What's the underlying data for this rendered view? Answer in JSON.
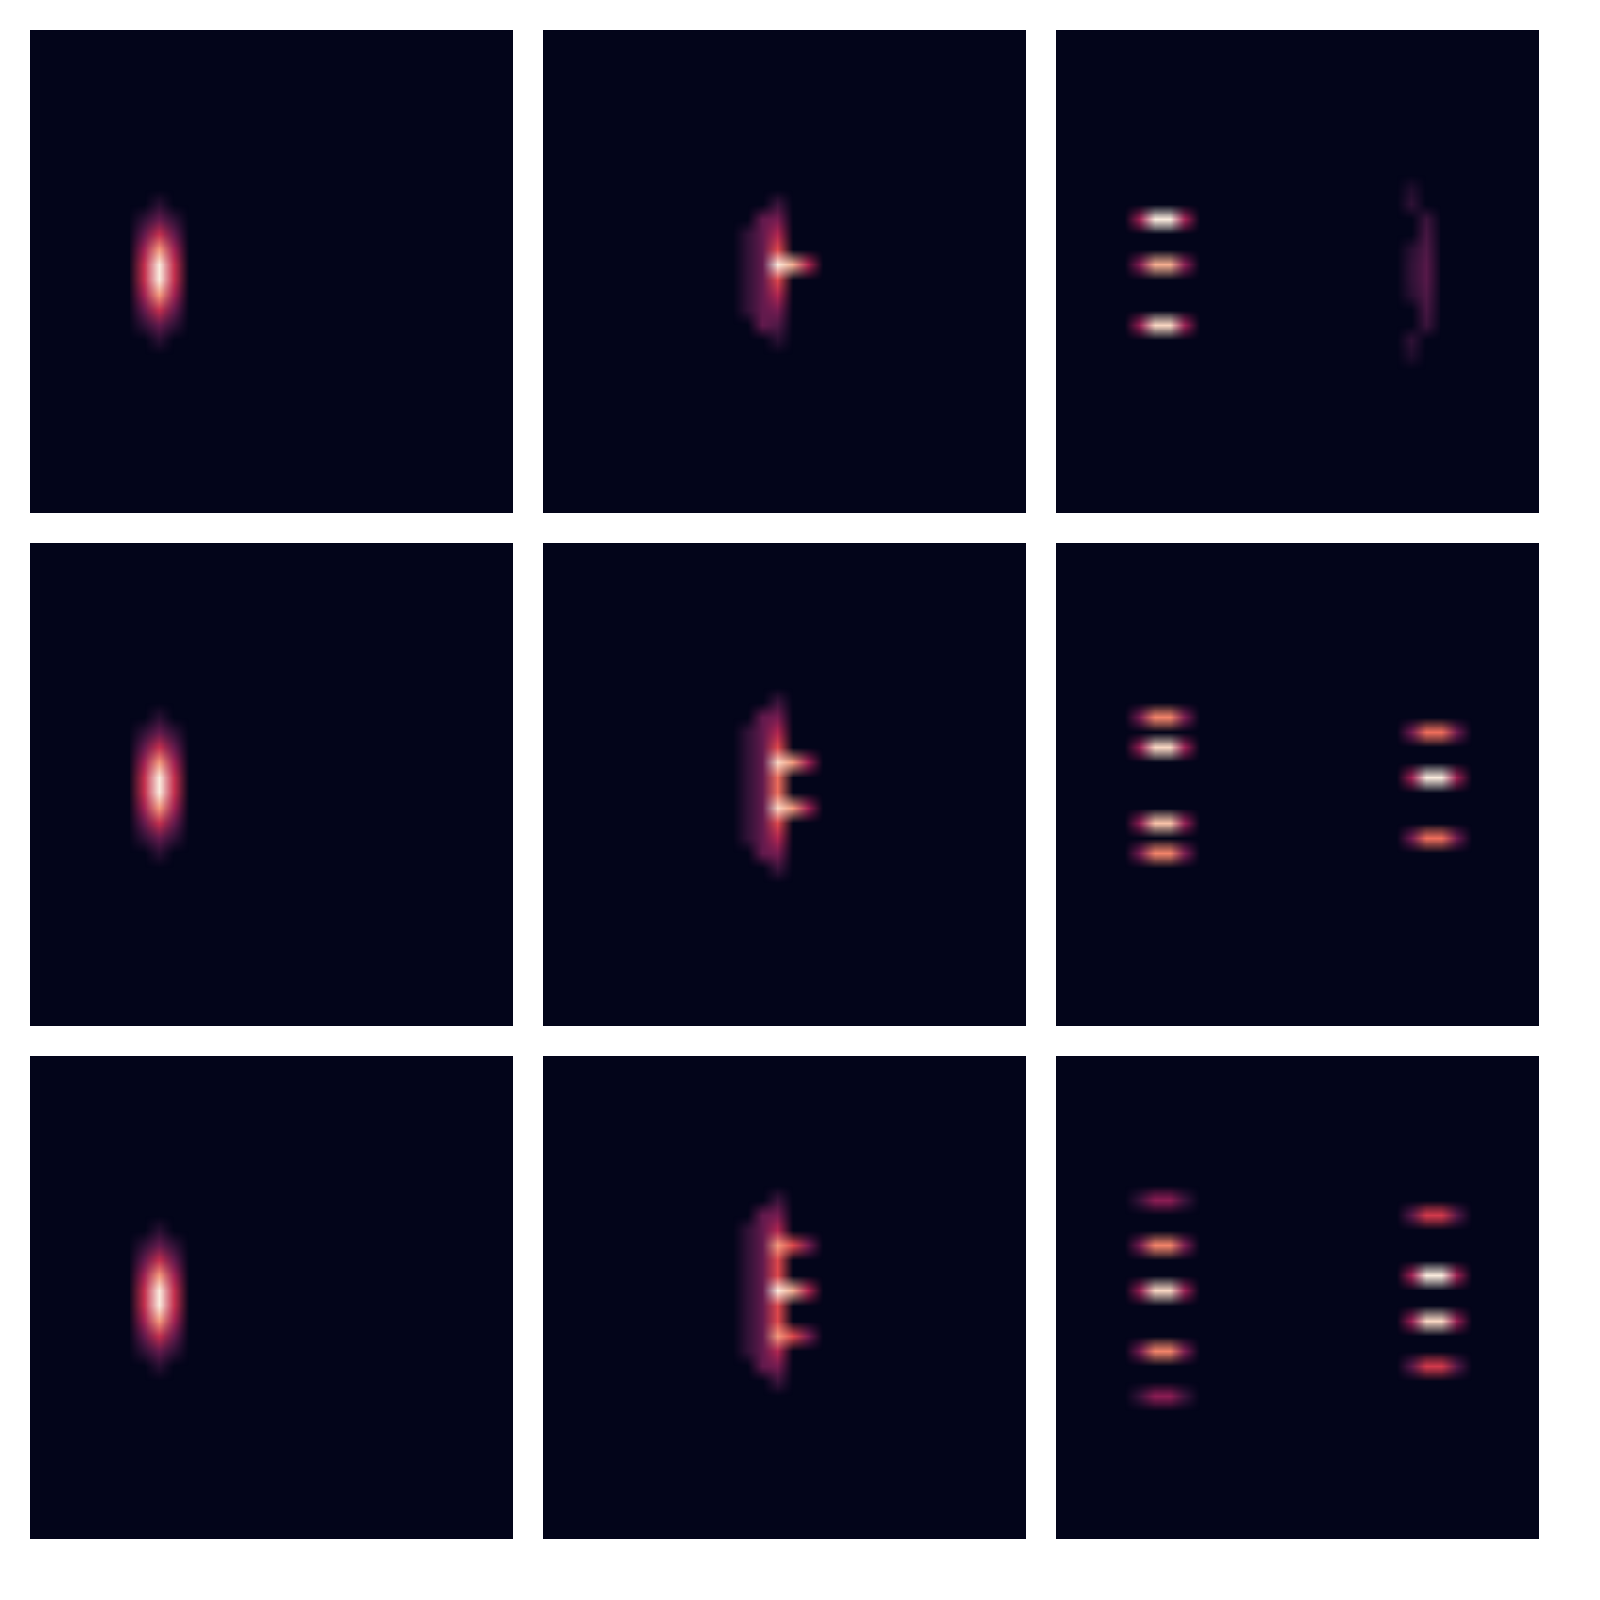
{
  "chart_data": [
    {
      "type": "heatmap",
      "tick_labels": false,
      "xlim": [
        0,
        32
      ],
      "ylim": [
        0,
        32
      ],
      "value_range": [
        0,
        1
      ],
      "cells": [
        [
          8,
          11,
          0.1
        ],
        [
          8,
          12,
          0.25
        ],
        [
          8,
          13,
          0.5
        ],
        [
          8,
          14,
          0.8
        ],
        [
          8,
          15,
          1
        ],
        [
          8,
          16,
          1
        ],
        [
          8,
          17,
          0.8
        ],
        [
          8,
          18,
          0.5
        ],
        [
          8,
          19,
          0.25
        ],
        [
          8,
          20,
          0.1
        ],
        [
          7,
          12,
          0.12
        ],
        [
          7,
          13,
          0.25
        ],
        [
          7,
          14,
          0.4
        ],
        [
          7,
          15,
          0.5
        ],
        [
          7,
          16,
          0.5
        ],
        [
          7,
          17,
          0.4
        ],
        [
          7,
          18,
          0.25
        ],
        [
          7,
          19,
          0.12
        ],
        [
          9,
          12,
          0.12
        ],
        [
          9,
          13,
          0.25
        ],
        [
          9,
          14,
          0.4
        ],
        [
          9,
          15,
          0.5
        ],
        [
          9,
          16,
          0.5
        ],
        [
          9,
          17,
          0.4
        ],
        [
          9,
          18,
          0.25
        ],
        [
          9,
          19,
          0.12
        ]
      ]
    },
    {
      "type": "heatmap",
      "tick_labels": false,
      "xlim": [
        0,
        32
      ],
      "ylim": [
        0,
        32
      ],
      "value_range": [
        0,
        1
      ],
      "cells": [
        [
          15,
          11,
          0.15
        ],
        [
          15,
          12,
          0.3
        ],
        [
          15,
          13,
          0.45
        ],
        [
          15,
          14,
          0.6
        ],
        [
          15,
          15,
          1
        ],
        [
          15,
          16,
          0.6
        ],
        [
          15,
          17,
          0.45
        ],
        [
          15,
          18,
          0.3
        ],
        [
          15,
          19,
          0.2
        ],
        [
          15,
          20,
          0.1
        ],
        [
          14,
          12,
          0.25
        ],
        [
          14,
          13,
          0.25
        ],
        [
          14,
          14,
          0.25
        ],
        [
          14,
          15,
          0.25
        ],
        [
          14,
          16,
          0.25
        ],
        [
          14,
          17,
          0.25
        ],
        [
          14,
          18,
          0.25
        ],
        [
          14,
          19,
          0.25
        ],
        [
          13,
          13,
          0.12
        ],
        [
          13,
          14,
          0.12
        ],
        [
          13,
          15,
          0.12
        ],
        [
          13,
          16,
          0.12
        ],
        [
          13,
          17,
          0.12
        ],
        [
          13,
          18,
          0.12
        ],
        [
          16,
          15,
          0.85
        ],
        [
          17,
          15,
          0.45
        ]
      ]
    },
    {
      "type": "heatmap",
      "tick_labels": false,
      "xlim": [
        0,
        32
      ],
      "ylim": [
        0,
        32
      ],
      "value_range": [
        0,
        1
      ],
      "cells": [
        [
          5,
          12,
          0.4
        ],
        [
          6,
          12,
          1
        ],
        [
          7,
          12,
          1
        ],
        [
          8,
          12,
          0.4
        ],
        [
          5,
          15,
          0.34
        ],
        [
          6,
          15,
          0.85
        ],
        [
          7,
          15,
          0.85
        ],
        [
          8,
          15,
          0.34
        ],
        [
          5,
          19,
          0.38
        ],
        [
          6,
          19,
          0.95
        ],
        [
          7,
          19,
          0.95
        ],
        [
          8,
          19,
          0.38
        ],
        [
          23,
          10,
          0.08
        ],
        [
          23,
          11,
          0.12
        ],
        [
          24,
          12,
          0.15
        ],
        [
          24,
          13,
          0.18
        ],
        [
          24,
          14,
          0.2
        ],
        [
          24,
          15,
          0.22
        ],
        [
          24,
          16,
          0.22
        ],
        [
          24,
          17,
          0.2
        ],
        [
          24,
          18,
          0.18
        ],
        [
          24,
          19,
          0.15
        ],
        [
          23,
          20,
          0.12
        ],
        [
          23,
          21,
          0.08
        ],
        [
          23,
          14,
          0.1
        ],
        [
          23,
          15,
          0.12
        ],
        [
          23,
          16,
          0.12
        ],
        [
          23,
          17,
          0.1
        ]
      ]
    },
    {
      "type": "heatmap",
      "tick_labels": false,
      "xlim": [
        0,
        32
      ],
      "ylim": [
        0,
        32
      ],
      "value_range": [
        0,
        1
      ],
      "cells": [
        [
          8,
          11,
          0.1
        ],
        [
          8,
          12,
          0.25
        ],
        [
          8,
          13,
          0.5
        ],
        [
          8,
          14,
          0.8
        ],
        [
          8,
          15,
          1
        ],
        [
          8,
          16,
          1
        ],
        [
          8,
          17,
          0.8
        ],
        [
          8,
          18,
          0.5
        ],
        [
          8,
          19,
          0.25
        ],
        [
          8,
          20,
          0.1
        ],
        [
          7,
          12,
          0.12
        ],
        [
          7,
          13,
          0.25
        ],
        [
          7,
          14,
          0.4
        ],
        [
          7,
          15,
          0.5
        ],
        [
          7,
          16,
          0.5
        ],
        [
          7,
          17,
          0.4
        ],
        [
          7,
          18,
          0.25
        ],
        [
          7,
          19,
          0.12
        ],
        [
          9,
          12,
          0.12
        ],
        [
          9,
          13,
          0.25
        ],
        [
          9,
          14,
          0.4
        ],
        [
          9,
          15,
          0.5
        ],
        [
          9,
          16,
          0.5
        ],
        [
          9,
          17,
          0.4
        ],
        [
          9,
          18,
          0.25
        ],
        [
          9,
          19,
          0.12
        ]
      ]
    },
    {
      "type": "heatmap",
      "tick_labels": false,
      "xlim": [
        0,
        32
      ],
      "ylim": [
        0,
        32
      ],
      "value_range": [
        0,
        1
      ],
      "cells": [
        [
          15,
          10,
          0.15
        ],
        [
          15,
          11,
          0.3
        ],
        [
          15,
          12,
          0.45
        ],
        [
          15,
          13,
          0.6
        ],
        [
          15,
          14,
          0.95
        ],
        [
          15,
          15,
          0.7
        ],
        [
          15,
          16,
          0.7
        ],
        [
          15,
          17,
          0.95
        ],
        [
          15,
          18,
          0.6
        ],
        [
          15,
          19,
          0.45
        ],
        [
          15,
          20,
          0.3
        ],
        [
          15,
          21,
          0.15
        ],
        [
          14,
          11,
          0.25
        ],
        [
          14,
          12,
          0.25
        ],
        [
          14,
          13,
          0.25
        ],
        [
          14,
          14,
          0.25
        ],
        [
          14,
          15,
          0.25
        ],
        [
          14,
          16,
          0.25
        ],
        [
          14,
          17,
          0.25
        ],
        [
          14,
          18,
          0.25
        ],
        [
          14,
          19,
          0.25
        ],
        [
          14,
          20,
          0.25
        ],
        [
          13,
          12,
          0.12
        ],
        [
          13,
          13,
          0.12
        ],
        [
          13,
          14,
          0.12
        ],
        [
          13,
          15,
          0.12
        ],
        [
          13,
          16,
          0.12
        ],
        [
          13,
          17,
          0.12
        ],
        [
          13,
          18,
          0.12
        ],
        [
          13,
          19,
          0.12
        ],
        [
          16,
          14,
          0.8
        ],
        [
          17,
          14,
          0.4
        ],
        [
          16,
          17,
          0.8
        ],
        [
          17,
          17,
          0.4
        ]
      ]
    },
    {
      "type": "heatmap",
      "tick_labels": false,
      "xlim": [
        0,
        32
      ],
      "ylim": [
        0,
        32
      ],
      "value_range": [
        0,
        1
      ],
      "cells": [
        [
          5,
          11,
          0.3
        ],
        [
          6,
          11,
          0.75
        ],
        [
          7,
          11,
          0.75
        ],
        [
          8,
          11,
          0.3
        ],
        [
          5,
          13,
          0.38
        ],
        [
          6,
          13,
          0.95
        ],
        [
          7,
          13,
          0.95
        ],
        [
          8,
          13,
          0.38
        ],
        [
          5,
          18,
          0.36
        ],
        [
          6,
          18,
          0.9
        ],
        [
          7,
          18,
          0.9
        ],
        [
          8,
          18,
          0.36
        ],
        [
          5,
          20,
          0.3
        ],
        [
          6,
          20,
          0.75
        ],
        [
          7,
          20,
          0.75
        ],
        [
          8,
          20,
          0.3
        ],
        [
          23,
          12,
          0.28
        ],
        [
          24,
          12,
          0.7
        ],
        [
          25,
          12,
          0.7
        ],
        [
          26,
          12,
          0.28
        ],
        [
          23,
          15,
          0.4
        ],
        [
          24,
          15,
          1
        ],
        [
          25,
          15,
          1
        ],
        [
          26,
          15,
          0.4
        ],
        [
          23,
          19,
          0.28
        ],
        [
          24,
          19,
          0.7
        ],
        [
          25,
          19,
          0.7
        ],
        [
          26,
          19,
          0.28
        ]
      ]
    },
    {
      "type": "heatmap",
      "tick_labels": false,
      "xlim": [
        0,
        32
      ],
      "ylim": [
        0,
        32
      ],
      "value_range": [
        0,
        1
      ],
      "cells": [
        [
          8,
          11,
          0.1
        ],
        [
          8,
          12,
          0.25
        ],
        [
          8,
          13,
          0.5
        ],
        [
          8,
          14,
          0.8
        ],
        [
          8,
          15,
          1
        ],
        [
          8,
          16,
          1
        ],
        [
          8,
          17,
          0.8
        ],
        [
          8,
          18,
          0.5
        ],
        [
          8,
          19,
          0.25
        ],
        [
          8,
          20,
          0.1
        ],
        [
          7,
          12,
          0.12
        ],
        [
          7,
          13,
          0.25
        ],
        [
          7,
          14,
          0.4
        ],
        [
          7,
          15,
          0.5
        ],
        [
          7,
          16,
          0.5
        ],
        [
          7,
          17,
          0.4
        ],
        [
          7,
          18,
          0.25
        ],
        [
          7,
          19,
          0.12
        ],
        [
          9,
          12,
          0.12
        ],
        [
          9,
          13,
          0.25
        ],
        [
          9,
          14,
          0.4
        ],
        [
          9,
          15,
          0.5
        ],
        [
          9,
          16,
          0.5
        ],
        [
          9,
          17,
          0.4
        ],
        [
          9,
          18,
          0.25
        ],
        [
          9,
          19,
          0.12
        ]
      ]
    },
    {
      "type": "heatmap",
      "tick_labels": false,
      "xlim": [
        0,
        32
      ],
      "ylim": [
        0,
        32
      ],
      "value_range": [
        0,
        1
      ],
      "cells": [
        [
          15,
          9,
          0.15
        ],
        [
          15,
          10,
          0.3
        ],
        [
          15,
          11,
          0.45
        ],
        [
          15,
          12,
          0.8
        ],
        [
          15,
          13,
          0.6
        ],
        [
          15,
          14,
          0.6
        ],
        [
          15,
          15,
          1
        ],
        [
          15,
          16,
          0.6
        ],
        [
          15,
          17,
          0.6
        ],
        [
          15,
          18,
          0.8
        ],
        [
          15,
          19,
          0.45
        ],
        [
          15,
          20,
          0.3
        ],
        [
          15,
          21,
          0.15
        ],
        [
          14,
          10,
          0.25
        ],
        [
          14,
          11,
          0.25
        ],
        [
          14,
          12,
          0.25
        ],
        [
          14,
          13,
          0.25
        ],
        [
          14,
          14,
          0.25
        ],
        [
          14,
          15,
          0.25
        ],
        [
          14,
          16,
          0.25
        ],
        [
          14,
          17,
          0.25
        ],
        [
          14,
          18,
          0.25
        ],
        [
          14,
          19,
          0.25
        ],
        [
          14,
          20,
          0.25
        ],
        [
          13,
          11,
          0.12
        ],
        [
          13,
          12,
          0.12
        ],
        [
          13,
          13,
          0.12
        ],
        [
          13,
          14,
          0.12
        ],
        [
          13,
          15,
          0.12
        ],
        [
          13,
          16,
          0.12
        ],
        [
          13,
          17,
          0.12
        ],
        [
          13,
          18,
          0.12
        ],
        [
          13,
          19,
          0.12
        ],
        [
          16,
          12,
          0.6
        ],
        [
          17,
          12,
          0.3
        ],
        [
          16,
          15,
          0.85
        ],
        [
          17,
          15,
          0.45
        ],
        [
          16,
          18,
          0.6
        ],
        [
          17,
          18,
          0.3
        ]
      ]
    },
    {
      "type": "heatmap",
      "tick_labels": false,
      "xlim": [
        0,
        32
      ],
      "ylim": [
        0,
        32
      ],
      "value_range": [
        0,
        1
      ],
      "cells": [
        [
          5,
          9,
          0.14
        ],
        [
          6,
          9,
          0.35
        ],
        [
          7,
          9,
          0.35
        ],
        [
          8,
          9,
          0.14
        ],
        [
          5,
          12,
          0.3
        ],
        [
          6,
          12,
          0.75
        ],
        [
          7,
          12,
          0.75
        ],
        [
          8,
          12,
          0.3
        ],
        [
          5,
          15,
          0.38
        ],
        [
          6,
          15,
          0.95
        ],
        [
          7,
          15,
          0.95
        ],
        [
          8,
          15,
          0.38
        ],
        [
          5,
          19,
          0.3
        ],
        [
          6,
          19,
          0.75
        ],
        [
          7,
          19,
          0.75
        ],
        [
          8,
          19,
          0.3
        ],
        [
          5,
          22,
          0.14
        ],
        [
          6,
          22,
          0.35
        ],
        [
          7,
          22,
          0.35
        ],
        [
          8,
          22,
          0.14
        ],
        [
          23,
          10,
          0.22
        ],
        [
          24,
          10,
          0.55
        ],
        [
          25,
          10,
          0.55
        ],
        [
          26,
          10,
          0.22
        ],
        [
          23,
          14,
          0.4
        ],
        [
          24,
          14,
          1
        ],
        [
          25,
          14,
          1
        ],
        [
          26,
          14,
          0.4
        ],
        [
          23,
          17,
          0.38
        ],
        [
          24,
          17,
          0.95
        ],
        [
          25,
          17,
          0.95
        ],
        [
          26,
          17,
          0.38
        ],
        [
          23,
          20,
          0.22
        ],
        [
          24,
          20,
          0.55
        ],
        [
          25,
          20,
          0.55
        ],
        [
          26,
          20,
          0.22
        ]
      ]
    }
  ]
}
